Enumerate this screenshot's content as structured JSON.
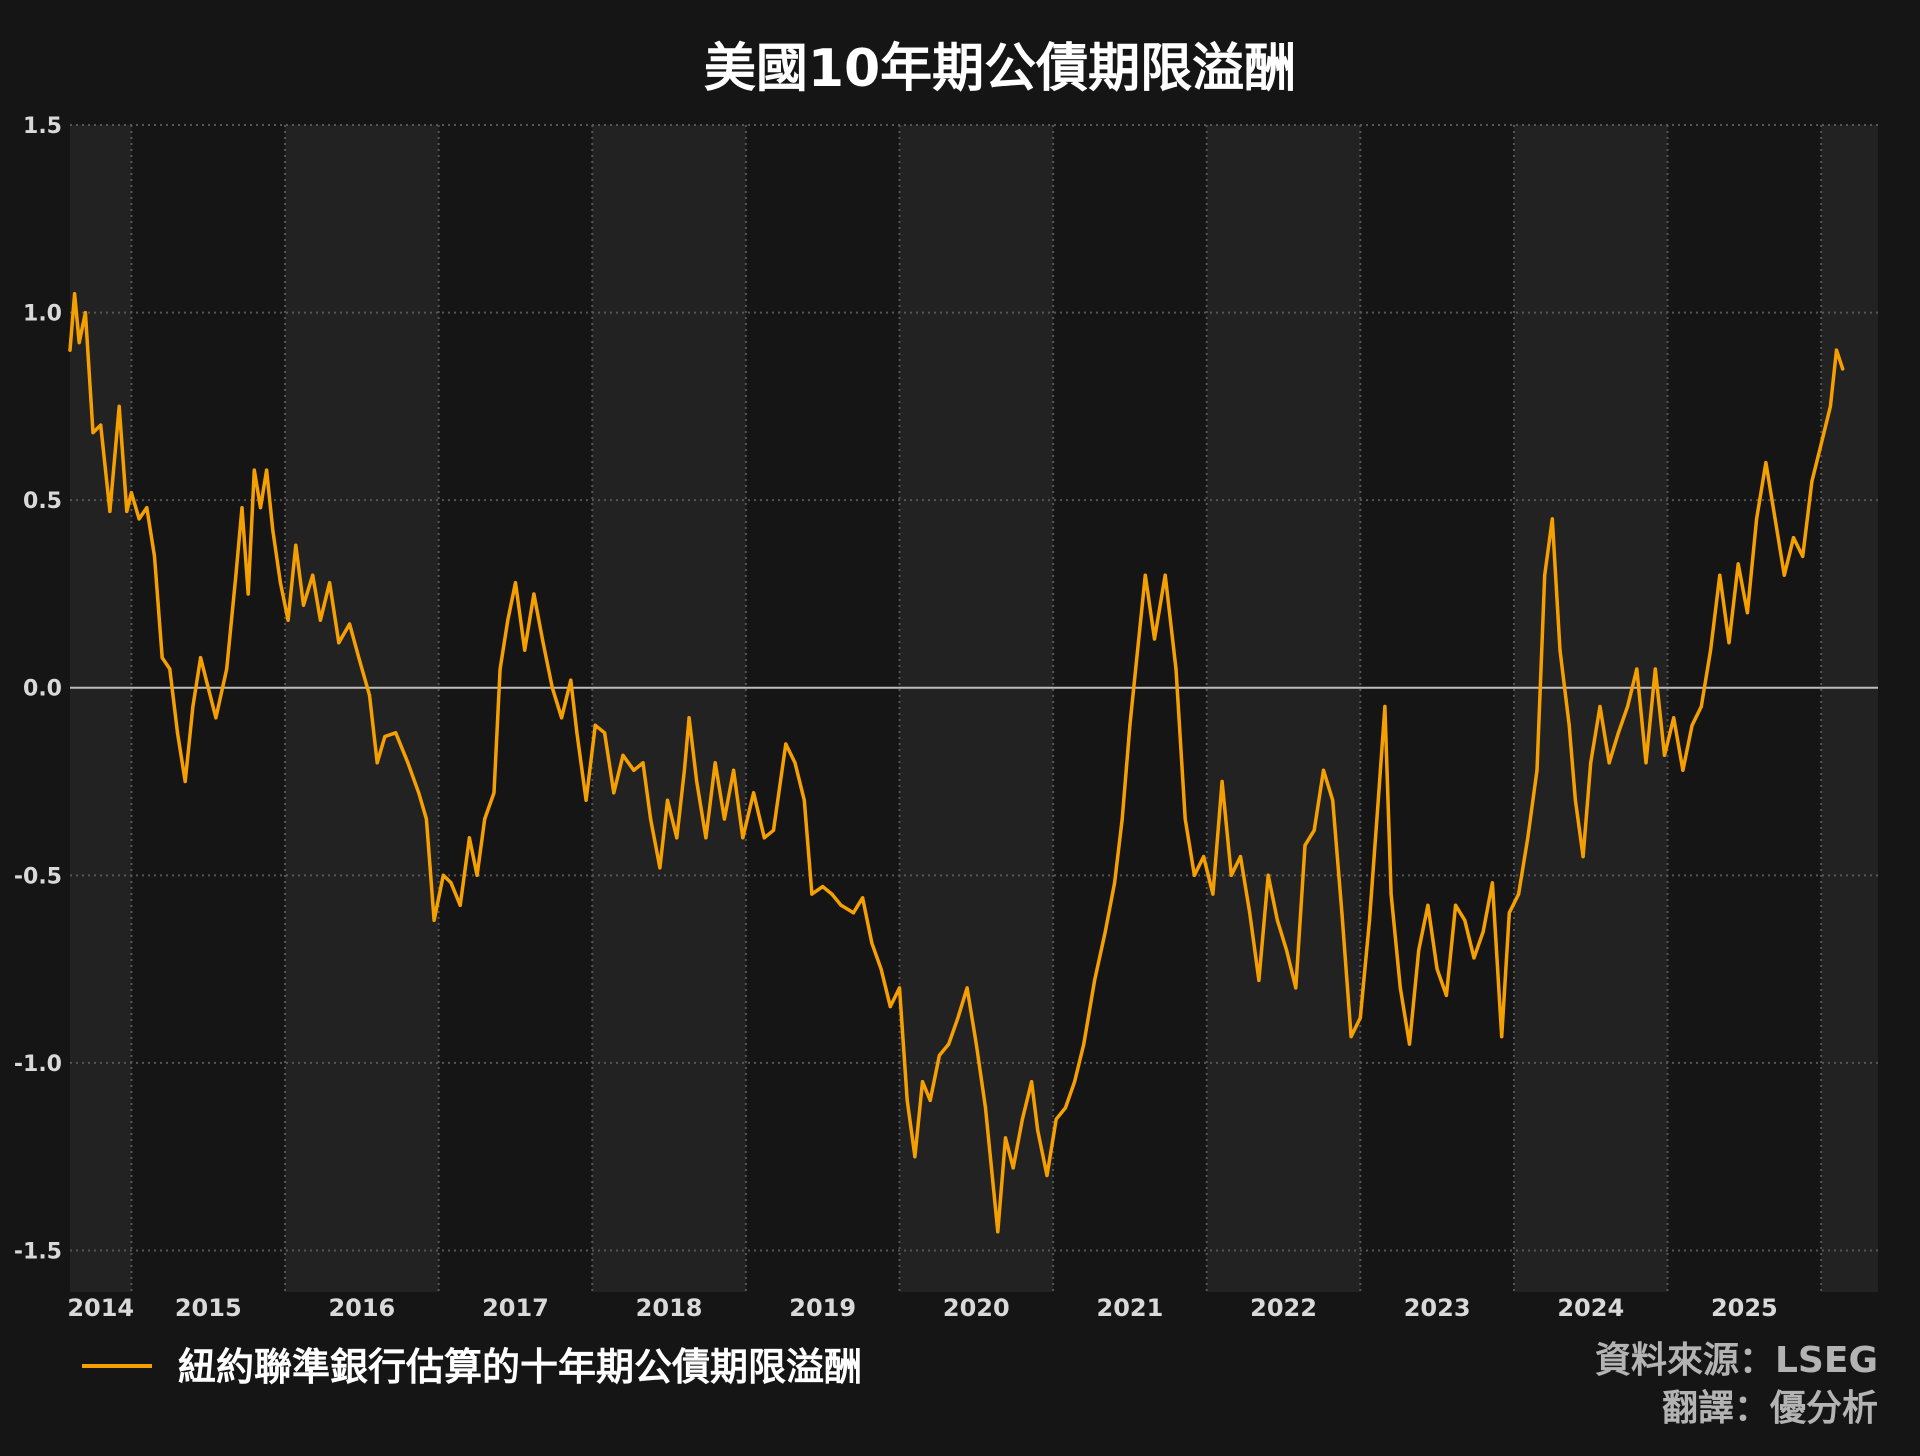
{
  "chart_data": {
    "type": "line",
    "title": "美國10年期公債期限溢酬",
    "xlabel": "",
    "ylabel": "",
    "ylim": [
      -1.6,
      1.5
    ],
    "yticks": [
      1.5,
      1.0,
      0.5,
      0.0,
      -0.5,
      -1.0,
      -1.5
    ],
    "ytick_labels": [
      "1.5",
      "1.0",
      "0.5",
      "0.0",
      "-0.5",
      "-1.0",
      "-1.5"
    ],
    "xlim": [
      2013.6,
      2025.37
    ],
    "xtick_labels": [
      "2014",
      "2015",
      "2016",
      "2017",
      "2018",
      "2019",
      "2020",
      "2021",
      "2022",
      "2023",
      "2024",
      "2025"
    ],
    "grid": true,
    "zero_line": true,
    "alternating_year_bands": true,
    "legend_position": "bottom-left",
    "colors": {
      "background": "#151515",
      "band": "#222222",
      "grid": "#555555",
      "zero_line": "#bdbdbd",
      "series": "#f5a000",
      "title": "#ffffff",
      "credit": "#b3b3b3"
    },
    "series": [
      {
        "name": "紐約聯準銀行估算的十年期公債期限溢酬",
        "color": "#f5a000",
        "points": [
          [
            2013.6,
            0.9
          ],
          [
            2013.63,
            1.05
          ],
          [
            2013.66,
            0.92
          ],
          [
            2013.7,
            1.0
          ],
          [
            2013.75,
            0.68
          ],
          [
            2013.8,
            0.7
          ],
          [
            2013.86,
            0.47
          ],
          [
            2013.92,
            0.75
          ],
          [
            2013.97,
            0.47
          ],
          [
            2014.0,
            0.52
          ],
          [
            2014.05,
            0.45
          ],
          [
            2014.1,
            0.48
          ],
          [
            2014.15,
            0.35
          ],
          [
            2014.2,
            0.08
          ],
          [
            2014.25,
            0.05
          ],
          [
            2014.3,
            -0.12
          ],
          [
            2014.35,
            -0.25
          ],
          [
            2014.4,
            -0.05
          ],
          [
            2014.45,
            0.08
          ],
          [
            2014.5,
            0.0
          ],
          [
            2014.55,
            -0.08
          ],
          [
            2014.62,
            0.05
          ],
          [
            2014.68,
            0.3
          ],
          [
            2014.72,
            0.48
          ],
          [
            2014.76,
            0.25
          ],
          [
            2014.8,
            0.58
          ],
          [
            2014.84,
            0.48
          ],
          [
            2014.88,
            0.58
          ],
          [
            2014.92,
            0.42
          ],
          [
            2014.97,
            0.28
          ],
          [
            2015.02,
            0.18
          ],
          [
            2015.07,
            0.38
          ],
          [
            2015.12,
            0.22
          ],
          [
            2015.18,
            0.3
          ],
          [
            2015.23,
            0.18
          ],
          [
            2015.29,
            0.28
          ],
          [
            2015.35,
            0.12
          ],
          [
            2015.42,
            0.17
          ],
          [
            2015.48,
            0.08
          ],
          [
            2015.55,
            -0.02
          ],
          [
            2015.6,
            -0.2
          ],
          [
            2015.65,
            -0.13
          ],
          [
            2015.72,
            -0.12
          ],
          [
            2015.8,
            -0.2
          ],
          [
            2015.87,
            -0.28
          ],
          [
            2015.92,
            -0.35
          ],
          [
            2015.97,
            -0.62
          ],
          [
            2016.03,
            -0.5
          ],
          [
            2016.08,
            -0.52
          ],
          [
            2016.14,
            -0.58
          ],
          [
            2016.2,
            -0.4
          ],
          [
            2016.25,
            -0.5
          ],
          [
            2016.3,
            -0.35
          ],
          [
            2016.36,
            -0.28
          ],
          [
            2016.4,
            0.05
          ],
          [
            2016.45,
            0.18
          ],
          [
            2016.5,
            0.28
          ],
          [
            2016.56,
            0.1
          ],
          [
            2016.62,
            0.25
          ],
          [
            2016.68,
            0.12
          ],
          [
            2016.74,
            0.0
          ],
          [
            2016.8,
            -0.08
          ],
          [
            2016.86,
            0.02
          ],
          [
            2016.9,
            -0.12
          ],
          [
            2016.96,
            -0.3
          ],
          [
            2017.02,
            -0.1
          ],
          [
            2017.08,
            -0.12
          ],
          [
            2017.14,
            -0.28
          ],
          [
            2017.2,
            -0.18
          ],
          [
            2017.27,
            -0.22
          ],
          [
            2017.33,
            -0.2
          ],
          [
            2017.38,
            -0.35
          ],
          [
            2017.44,
            -0.48
          ],
          [
            2017.49,
            -0.3
          ],
          [
            2017.55,
            -0.4
          ],
          [
            2017.6,
            -0.22
          ],
          [
            2017.63,
            -0.08
          ],
          [
            2017.68,
            -0.25
          ],
          [
            2017.74,
            -0.4
          ],
          [
            2017.8,
            -0.2
          ],
          [
            2017.86,
            -0.35
          ],
          [
            2017.92,
            -0.22
          ],
          [
            2017.98,
            -0.4
          ],
          [
            2018.05,
            -0.28
          ],
          [
            2018.12,
            -0.4
          ],
          [
            2018.18,
            -0.38
          ],
          [
            2018.26,
            -0.15
          ],
          [
            2018.32,
            -0.2
          ],
          [
            2018.38,
            -0.3
          ],
          [
            2018.43,
            -0.55
          ],
          [
            2018.5,
            -0.53
          ],
          [
            2018.56,
            -0.55
          ],
          [
            2018.62,
            -0.58
          ],
          [
            2018.7,
            -0.6
          ],
          [
            2018.76,
            -0.56
          ],
          [
            2018.82,
            -0.68
          ],
          [
            2018.88,
            -0.75
          ],
          [
            2018.94,
            -0.85
          ],
          [
            2019.0,
            -0.8
          ],
          [
            2019.05,
            -1.1
          ],
          [
            2019.1,
            -1.25
          ],
          [
            2019.15,
            -1.05
          ],
          [
            2019.2,
            -1.1
          ],
          [
            2019.26,
            -0.98
          ],
          [
            2019.32,
            -0.95
          ],
          [
            2019.38,
            -0.88
          ],
          [
            2019.44,
            -0.8
          ],
          [
            2019.5,
            -0.95
          ],
          [
            2019.56,
            -1.12
          ],
          [
            2019.64,
            -1.45
          ],
          [
            2019.69,
            -1.2
          ],
          [
            2019.74,
            -1.28
          ],
          [
            2019.8,
            -1.15
          ],
          [
            2019.86,
            -1.05
          ],
          [
            2019.9,
            -1.18
          ],
          [
            2019.96,
            -1.3
          ],
          [
            2020.02,
            -1.15
          ],
          [
            2020.08,
            -1.12
          ],
          [
            2020.14,
            -1.05
          ],
          [
            2020.2,
            -0.95
          ],
          [
            2020.27,
            -0.78
          ],
          [
            2020.34,
            -0.65
          ],
          [
            2020.4,
            -0.52
          ],
          [
            2020.45,
            -0.35
          ],
          [
            2020.5,
            -0.1
          ],
          [
            2020.55,
            0.1
          ],
          [
            2020.6,
            0.3
          ],
          [
            2020.66,
            0.13
          ],
          [
            2020.73,
            0.3
          ],
          [
            2020.8,
            0.05
          ],
          [
            2020.86,
            -0.35
          ],
          [
            2020.92,
            -0.5
          ],
          [
            2020.98,
            -0.45
          ],
          [
            2021.04,
            -0.55
          ],
          [
            2021.1,
            -0.25
          ],
          [
            2021.16,
            -0.5
          ],
          [
            2021.22,
            -0.45
          ],
          [
            2021.28,
            -0.6
          ],
          [
            2021.34,
            -0.78
          ],
          [
            2021.4,
            -0.5
          ],
          [
            2021.46,
            -0.62
          ],
          [
            2021.52,
            -0.7
          ],
          [
            2021.58,
            -0.8
          ],
          [
            2021.64,
            -0.42
          ],
          [
            2021.7,
            -0.38
          ],
          [
            2021.76,
            -0.22
          ],
          [
            2021.82,
            -0.3
          ],
          [
            2021.88,
            -0.6
          ],
          [
            2021.94,
            -0.93
          ],
          [
            2022.0,
            -0.88
          ],
          [
            2022.06,
            -0.62
          ],
          [
            2022.12,
            -0.28
          ],
          [
            2022.16,
            -0.05
          ],
          [
            2022.2,
            -0.55
          ],
          [
            2022.26,
            -0.8
          ],
          [
            2022.32,
            -0.95
          ],
          [
            2022.38,
            -0.7
          ],
          [
            2022.44,
            -0.58
          ],
          [
            2022.5,
            -0.75
          ],
          [
            2022.56,
            -0.82
          ],
          [
            2022.62,
            -0.58
          ],
          [
            2022.68,
            -0.62
          ],
          [
            2022.74,
            -0.72
          ],
          [
            2022.8,
            -0.65
          ],
          [
            2022.86,
            -0.52
          ],
          [
            2022.92,
            -0.93
          ],
          [
            2022.97,
            -0.6
          ],
          [
            2023.03,
            -0.55
          ],
          [
            2023.09,
            -0.4
          ],
          [
            2023.15,
            -0.22
          ],
          [
            2023.2,
            0.3
          ],
          [
            2023.25,
            0.45
          ],
          [
            2023.3,
            0.1
          ],
          [
            2023.36,
            -0.1
          ],
          [
            2023.4,
            -0.3
          ],
          [
            2023.45,
            -0.45
          ],
          [
            2023.5,
            -0.2
          ],
          [
            2023.56,
            -0.05
          ],
          [
            2023.62,
            -0.2
          ],
          [
            2023.68,
            -0.12
          ],
          [
            2023.74,
            -0.05
          ],
          [
            2023.8,
            0.05
          ],
          [
            2023.86,
            -0.2
          ],
          [
            2023.92,
            0.05
          ],
          [
            2023.98,
            -0.18
          ],
          [
            2024.04,
            -0.08
          ],
          [
            2024.1,
            -0.22
          ],
          [
            2024.16,
            -0.1
          ],
          [
            2024.22,
            -0.05
          ],
          [
            2024.28,
            0.1
          ],
          [
            2024.34,
            0.3
          ],
          [
            2024.4,
            0.12
          ],
          [
            2024.46,
            0.33
          ],
          [
            2024.52,
            0.2
          ],
          [
            2024.58,
            0.45
          ],
          [
            2024.64,
            0.6
          ],
          [
            2024.7,
            0.45
          ],
          [
            2024.76,
            0.3
          ],
          [
            2024.82,
            0.4
          ],
          [
            2024.88,
            0.35
          ],
          [
            2024.94,
            0.55
          ],
          [
            2025.0,
            0.65
          ],
          [
            2025.06,
            0.75
          ],
          [
            2025.1,
            0.9
          ],
          [
            2025.14,
            0.85
          ]
        ]
      }
    ]
  },
  "legend": {
    "label": "紐約聯準銀行估算的十年期公債期限溢酬"
  },
  "credits": {
    "source": "資料來源：LSEG",
    "translation": "翻譯：優分析"
  }
}
